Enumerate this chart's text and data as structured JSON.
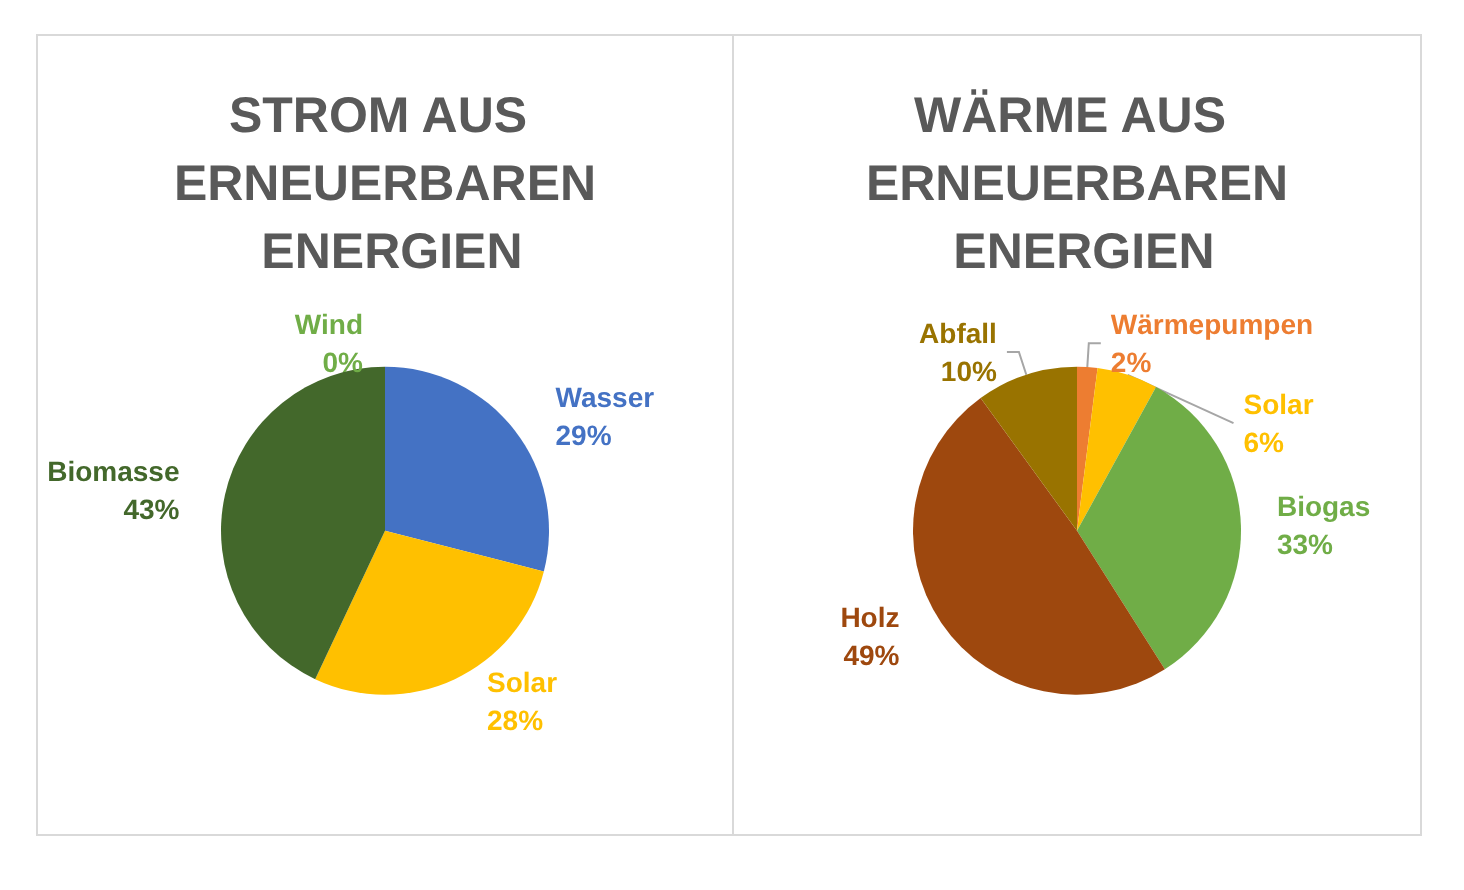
{
  "chart_data": [
    {
      "type": "pie",
      "title": "STROM AUS ERNEUERBAREN ENERGIEN",
      "categories": [
        "Wind",
        "Wasser",
        "Solar",
        "Biomasse"
      ],
      "values": [
        0,
        29,
        28,
        43
      ],
      "value_labels": [
        "0%",
        "29%",
        "28%",
        "43%"
      ],
      "colors": [
        "#70ad47",
        "#4472c4",
        "#ffc000",
        "#43682b"
      ]
    },
    {
      "type": "pie",
      "title": "WÄRME AUS ERNEUERBAREN ENERGIEN",
      "categories": [
        "Wärmepumpen",
        "Solar",
        "Biogas",
        "Holz",
        "Abfall"
      ],
      "values": [
        2,
        6,
        33,
        49,
        10
      ],
      "value_labels": [
        "2%",
        "6%",
        "33%",
        "49%",
        "10%"
      ],
      "colors": [
        "#ed7d31",
        "#ffc000",
        "#70ad47",
        "#9e480e",
        "#997300"
      ]
    }
  ]
}
